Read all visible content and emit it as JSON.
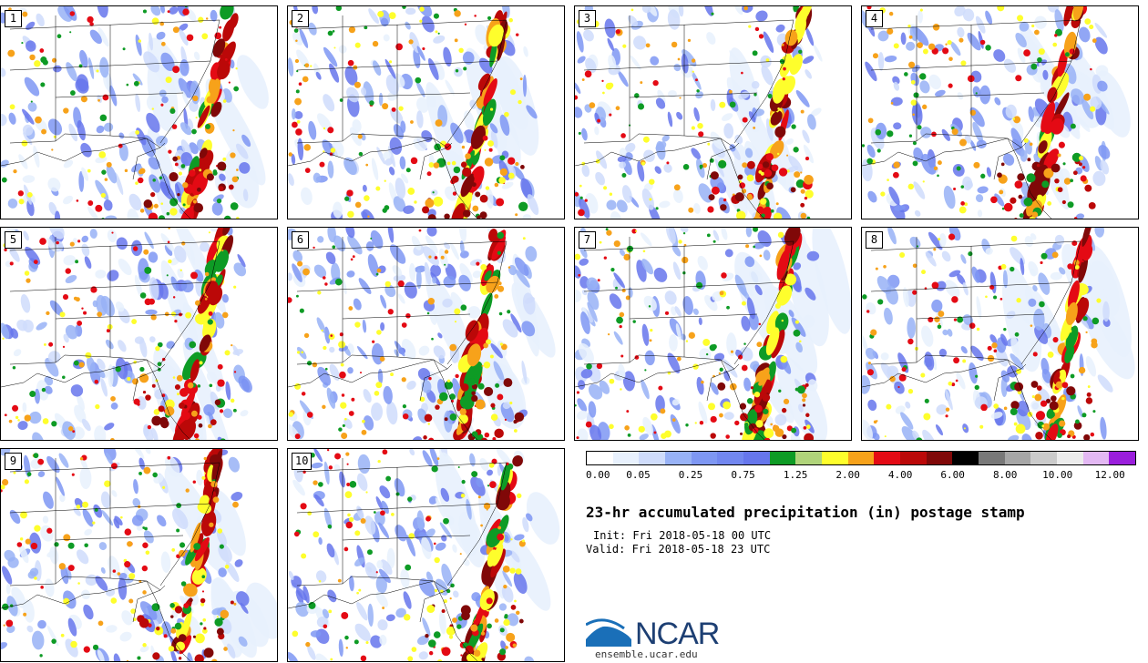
{
  "panels": [
    {
      "label": "1"
    },
    {
      "label": "2"
    },
    {
      "label": "3"
    },
    {
      "label": "4"
    },
    {
      "label": "5"
    },
    {
      "label": "6"
    },
    {
      "label": "7"
    },
    {
      "label": "8"
    },
    {
      "label": "9"
    },
    {
      "label": "10"
    }
  ],
  "colorbar": {
    "colors": [
      "#ffffff",
      "#e8f1fd",
      "#cfdcfb",
      "#98b2f6",
      "#7e97f3",
      "#7287f0",
      "#6676ec",
      "#0e9b25",
      "#b0d47a",
      "#fefe2c",
      "#f7a21a",
      "#e40a14",
      "#bb0808",
      "#800808",
      "#000000",
      "#787878",
      "#a6a6a6",
      "#cbcbcb",
      "#ececec",
      "#e3b8f3",
      "#9a1edc"
    ],
    "labels": [
      "0.00",
      "0.05",
      "0.25",
      "0.75",
      "1.25",
      "2.00",
      "4.00",
      "6.00",
      "8.00",
      "10.00",
      "12.00"
    ]
  },
  "title": "23-hr accumulated precipitation (in) postage stamp",
  "init": "Init: Fri 2018-05-18 00 UTC",
  "valid": "Valid: Fri 2018-05-18 23 UTC",
  "logo": {
    "text": "NCAR",
    "url": "ensemble.ucar.edu",
    "color": "#1d3f73",
    "accent": "#1a6fb8"
  }
}
